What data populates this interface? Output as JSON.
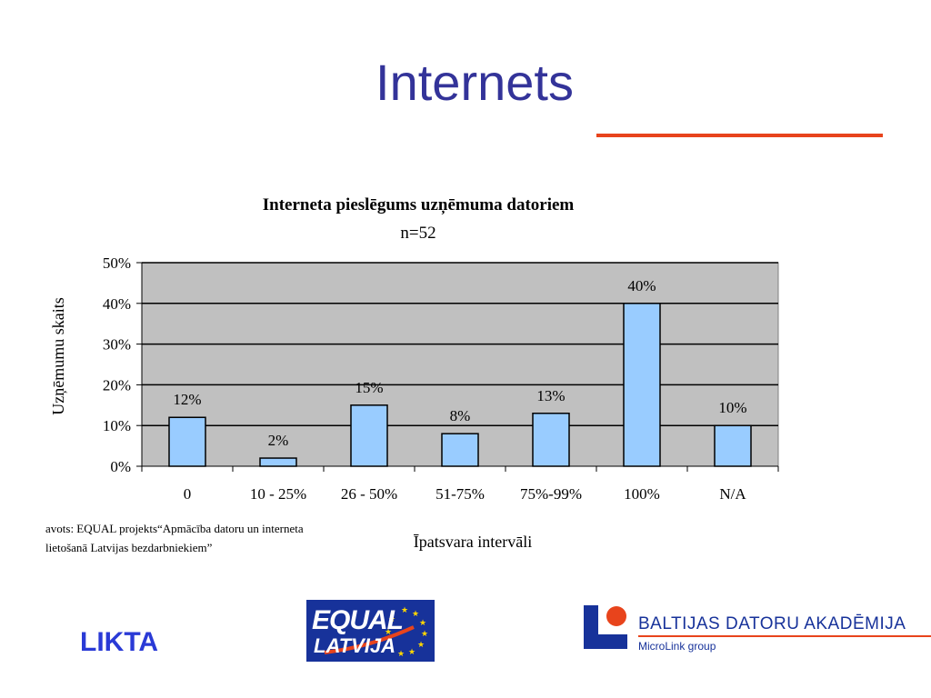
{
  "slide": {
    "title": "Internets"
  },
  "chart_data": {
    "type": "bar",
    "title": "Interneta pieslēgums uzņēmuma datoriem",
    "subtitle": "n=52",
    "xlabel": "Īpatsvara intervāli",
    "ylabel": "Uzņēmumu skaits",
    "categories": [
      "0",
      "10 - 25%",
      "26 - 50%",
      "51-75%",
      "75%-99%",
      "100%",
      "N/A"
    ],
    "values": [
      12,
      2,
      15,
      8,
      13,
      40,
      10
    ],
    "data_labels": [
      "12%",
      "2%",
      "15%",
      "8%",
      "13%",
      "40%",
      "10%"
    ],
    "ylim": [
      0,
      50
    ],
    "yticks": [
      0,
      10,
      20,
      30,
      40,
      50
    ],
    "ytick_labels": [
      "0%",
      "10%",
      "20%",
      "30%",
      "40%",
      "50%"
    ],
    "grid": true,
    "colors": {
      "bar": "#99ccff",
      "plot_background": "#c0c0c0"
    }
  },
  "source_note": {
    "line1": "avots: EQUAL projekts“Apmācība datoru un interneta",
    "line2": "lietošanā Latvijas bezdarbniekiem”"
  },
  "footer": {
    "likta": "LIKTA",
    "equal_logo_word": "EQUAL",
    "equal_logo_sub": "LATVIJA",
    "bda_name": "BALTIJAS DATORU AKADĒMIJA",
    "bda_group": "MicroLink group"
  }
}
